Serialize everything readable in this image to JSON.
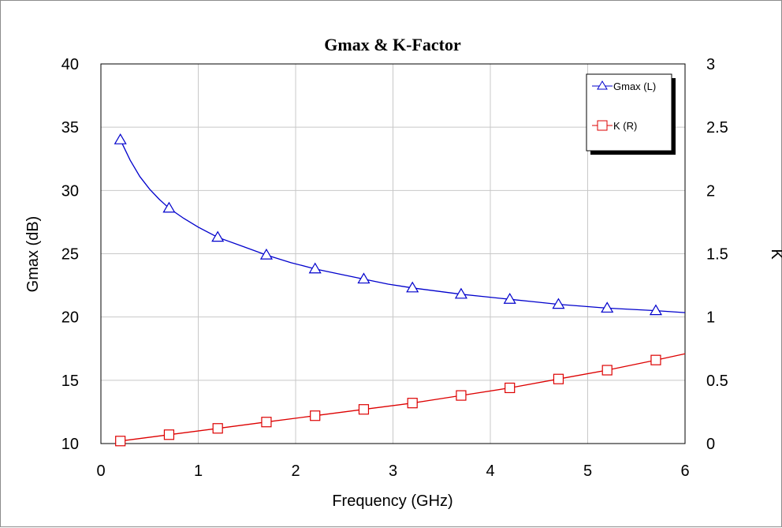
{
  "chart_data": {
    "type": "line",
    "title": "Gmax & K-Factor",
    "xlabel": "Frequency (GHz)",
    "ylabel_left": "Gmax (dB)",
    "ylabel_right": "K",
    "xlim": [
      0,
      6
    ],
    "ylim_left": [
      10,
      40
    ],
    "ylim_right": [
      0,
      3
    ],
    "x_ticks": [
      "0",
      "1",
      "2",
      "3",
      "4",
      "5",
      "6"
    ],
    "y_ticks_left": [
      "10",
      "15",
      "20",
      "25",
      "30",
      "35",
      "40"
    ],
    "y_ticks_right": [
      "0",
      "0.5",
      "1",
      "1.5",
      "2",
      "2.5",
      "3"
    ],
    "grid": true,
    "legend_position": "top-right",
    "series": [
      {
        "name": "Gmax (L)",
        "axis": "left",
        "color": "#0000cc",
        "marker": "triangle",
        "x": [
          0.2,
          0.7,
          1.2,
          1.7,
          2.2,
          2.7,
          3.2,
          3.7,
          4.2,
          4.7,
          5.2,
          5.7
        ],
        "values": [
          34.0,
          28.6,
          26.3,
          24.9,
          23.8,
          23.0,
          22.3,
          21.8,
          21.4,
          21.0,
          20.7,
          20.5
        ],
        "curve_x": [
          0.2,
          0.3,
          0.4,
          0.5,
          0.6,
          0.7,
          0.85,
          1.0,
          1.2,
          1.45,
          1.7,
          1.95,
          2.2,
          2.45,
          2.7,
          2.95,
          3.2,
          3.45,
          3.7,
          3.95,
          4.2,
          4.45,
          4.7,
          4.95,
          5.2,
          5.45,
          5.7,
          6.0
        ],
        "curve_y": [
          34.0,
          32.4,
          31.1,
          30.1,
          29.3,
          28.6,
          27.8,
          27.1,
          26.3,
          25.6,
          24.9,
          24.3,
          23.8,
          23.4,
          23.0,
          22.6,
          22.3,
          22.05,
          21.8,
          21.6,
          21.4,
          21.2,
          21.0,
          20.85,
          20.7,
          20.6,
          20.5,
          20.35
        ]
      },
      {
        "name": "K (R)",
        "axis": "right",
        "color": "#dd0000",
        "marker": "square",
        "x": [
          0.2,
          0.7,
          1.2,
          1.7,
          2.2,
          2.7,
          3.2,
          3.7,
          4.2,
          4.7,
          5.2,
          5.7
        ],
        "values": [
          0.02,
          0.07,
          0.12,
          0.17,
          0.22,
          0.27,
          0.32,
          0.38,
          0.44,
          0.51,
          0.58,
          0.66
        ],
        "curve_x": [
          0.2,
          0.7,
          1.2,
          1.7,
          2.2,
          2.7,
          3.2,
          3.7,
          4.2,
          4.7,
          5.2,
          5.7,
          6.0
        ],
        "curve_y": [
          0.02,
          0.07,
          0.12,
          0.17,
          0.22,
          0.27,
          0.32,
          0.38,
          0.44,
          0.51,
          0.58,
          0.66,
          0.71
        ]
      }
    ]
  }
}
